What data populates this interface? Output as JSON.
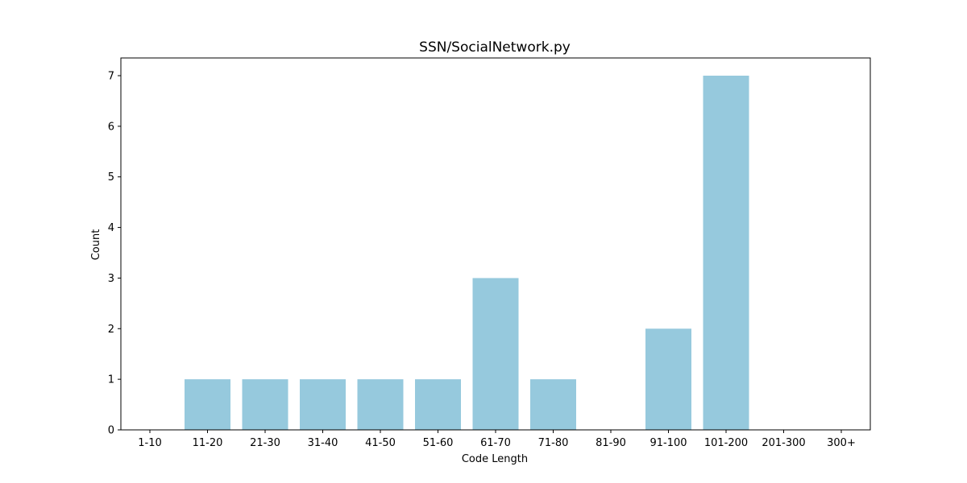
{
  "chart_data": {
    "type": "bar",
    "title": "SSN/SocialNetwork.py",
    "xlabel": "Code Length",
    "ylabel": "Count",
    "categories": [
      "1-10",
      "11-20",
      "21-30",
      "31-40",
      "41-50",
      "51-60",
      "61-70",
      "71-80",
      "81-90",
      "91-100",
      "101-200",
      "201-300",
      "300+"
    ],
    "values": [
      0,
      1,
      1,
      1,
      1,
      1,
      3,
      1,
      0,
      2,
      7,
      0,
      0
    ],
    "yticks": [
      "0",
      "1",
      "2",
      "3",
      "4",
      "5",
      "6",
      "7"
    ],
    "ylim": [
      0,
      7.35
    ],
    "grid": false,
    "bar_color": "#96c9dd"
  }
}
